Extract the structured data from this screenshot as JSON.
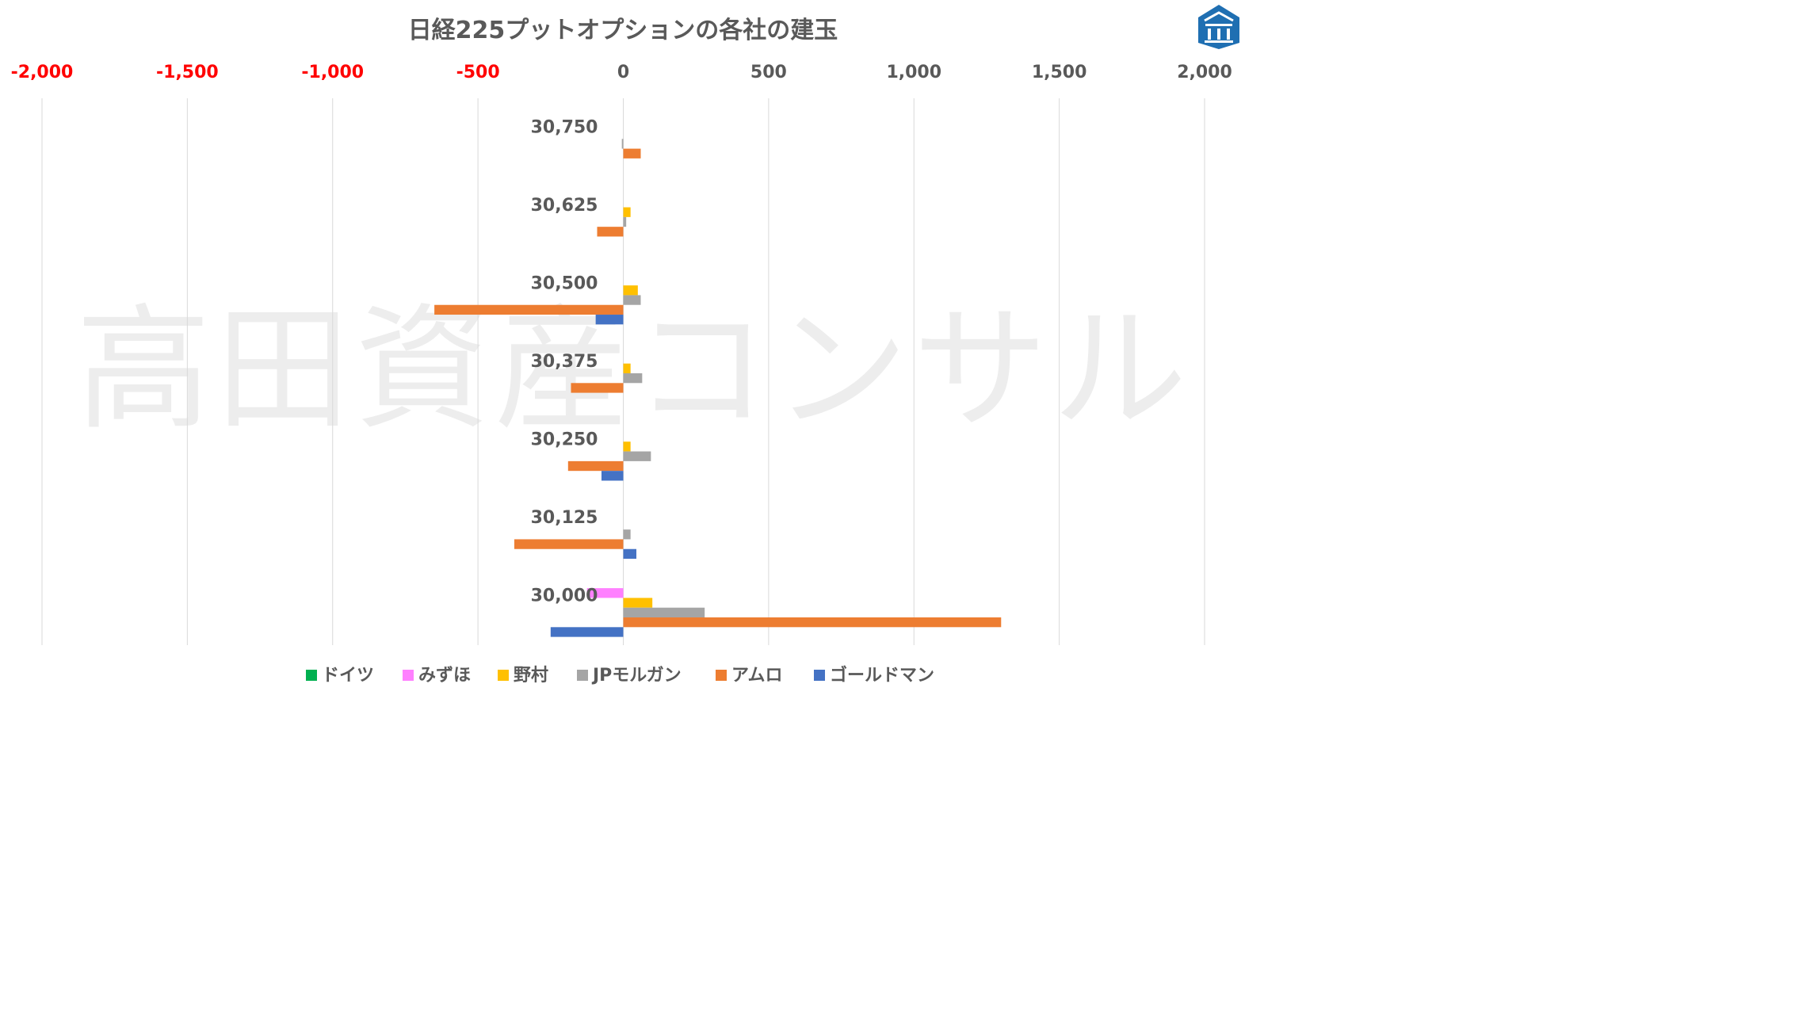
{
  "chart_data": {
    "type": "bar",
    "orientation": "horizontal",
    "title": "日経225プットオプションの各社の建玉",
    "xlim": [
      -2000,
      2000
    ],
    "x_ticks": [
      "-2,000",
      "-1,500",
      "-1,000",
      "-500",
      "0",
      "500",
      "1,000",
      "1,500",
      "2,000"
    ],
    "x_tick_values": [
      -2000,
      -1500,
      -1000,
      -500,
      0,
      500,
      1000,
      1500,
      2000
    ],
    "negative_tick_color": "#ff0000",
    "positive_tick_color": "#595959",
    "axis_position": "top",
    "grid": true,
    "legend_position": "bottom",
    "categories": [
      "30,750",
      "30,625",
      "30,500",
      "30,375",
      "30,250",
      "30,125",
      "30,000"
    ],
    "series": [
      {
        "name": "ドイツ",
        "color": "#00b050",
        "values": [
          0,
          0,
          0,
          0,
          0,
          0,
          0
        ]
      },
      {
        "name": "みずほ",
        "color": "#ff80ff",
        "values": [
          0,
          0,
          0,
          0,
          0,
          0,
          -125
        ]
      },
      {
        "name": "野村",
        "color": "#ffc000",
        "values": [
          0,
          25,
          50,
          25,
          25,
          0,
          100
        ]
      },
      {
        "name": "JPモルガン",
        "color": "#a5a5a5",
        "values": [
          -5,
          10,
          60,
          65,
          95,
          25,
          280
        ]
      },
      {
        "name": "アムロ",
        "color": "#ed7d31",
        "values": [
          60,
          -90,
          -650,
          -180,
          -190,
          -375,
          1300
        ]
      },
      {
        "name": "ゴールドマン",
        "color": "#4472c4",
        "values": [
          0,
          0,
          -95,
          0,
          -75,
          45,
          -250
        ]
      }
    ]
  },
  "watermark": "高田資産コンサル",
  "logo": {
    "icon": "house-pillar-logo-icon",
    "color": "#1f6fb2"
  }
}
